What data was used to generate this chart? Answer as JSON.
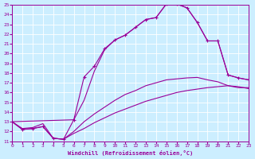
{
  "xlabel": "Windchill (Refroidissement éolien,°C)",
  "bg_color": "#cceeff",
  "grid_color": "#ffffff",
  "line_color": "#990099",
  "xlim": [
    0,
    23
  ],
  "ylim": [
    11,
    25
  ],
  "xticks": [
    0,
    1,
    2,
    3,
    4,
    5,
    6,
    7,
    8,
    9,
    10,
    11,
    12,
    13,
    14,
    15,
    16,
    17,
    18,
    19,
    20,
    21,
    22,
    23
  ],
  "yticks": [
    11,
    12,
    13,
    14,
    15,
    16,
    17,
    18,
    19,
    20,
    21,
    22,
    23,
    24,
    25
  ],
  "curve_upper_x": [
    0,
    1,
    2,
    3,
    4,
    5,
    6,
    7,
    8,
    9,
    10,
    11,
    12,
    13,
    14,
    15,
    16,
    17,
    18,
    19,
    20,
    21,
    22,
    23
  ],
  "curve_upper_y": [
    13.0,
    12.2,
    12.3,
    12.5,
    11.3,
    11.2,
    13.2,
    17.6,
    18.7,
    20.5,
    21.4,
    21.9,
    22.7,
    23.5,
    23.7,
    25.1,
    25.1,
    24.7,
    23.2,
    21.3,
    21.3,
    17.8,
    17.5,
    17.3
  ],
  "curve_upper2_x": [
    0,
    6,
    7,
    8,
    9,
    10,
    11,
    12,
    13,
    14,
    15,
    16,
    17,
    18,
    19,
    20,
    21,
    22,
    23
  ],
  "curve_upper2_y": [
    13.0,
    13.2,
    15.2,
    18.2,
    20.4,
    21.4,
    21.9,
    22.7,
    23.5,
    23.7,
    25.1,
    25.1,
    24.7,
    23.2,
    21.3,
    21.3,
    17.8,
    17.5,
    17.3
  ],
  "curve_mid_x": [
    0,
    1,
    2,
    3,
    4,
    5,
    6,
    7,
    8,
    9,
    10,
    11,
    12,
    13,
    14,
    15,
    16,
    17,
    18,
    19,
    20,
    21,
    22,
    23
  ],
  "curve_mid_y": [
    13.0,
    12.3,
    12.4,
    12.8,
    11.3,
    11.2,
    12.0,
    13.0,
    13.8,
    14.5,
    15.2,
    15.8,
    16.2,
    16.7,
    17.0,
    17.3,
    17.4,
    17.5,
    17.55,
    17.3,
    17.1,
    16.7,
    16.5,
    16.5
  ],
  "curve_low_x": [
    0,
    1,
    2,
    3,
    4,
    5,
    6,
    7,
    8,
    9,
    10,
    11,
    12,
    13,
    14,
    15,
    16,
    17,
    18,
    19,
    20,
    21,
    22,
    23
  ],
  "curve_low_y": [
    13.0,
    12.2,
    12.3,
    12.5,
    11.3,
    11.2,
    11.8,
    12.3,
    12.9,
    13.4,
    13.9,
    14.3,
    14.7,
    15.1,
    15.4,
    15.7,
    16.0,
    16.2,
    16.35,
    16.5,
    16.6,
    16.7,
    16.6,
    16.4
  ]
}
